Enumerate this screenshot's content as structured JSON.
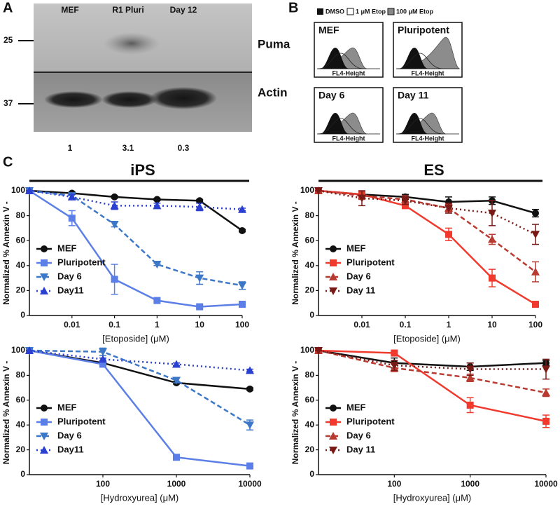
{
  "figure": {
    "panel_a": {
      "label": "A",
      "lanes": [
        "MEF",
        "R1 Pluri",
        "Day 12"
      ],
      "markers": [
        "25",
        "37"
      ],
      "bands": [
        "Puma",
        "Actin"
      ],
      "quantification": [
        "1",
        "3.1",
        "0.3"
      ]
    },
    "panel_b": {
      "label": "B",
      "legend": [
        "DMSO",
        "1 μM Etop",
        "100 μM Etop"
      ],
      "plots": [
        "MEF",
        "Pluripotent",
        "Day 6",
        "Day 11"
      ],
      "axis_label": "FL4-Height"
    },
    "panel_c": {
      "label": "C"
    }
  },
  "chart_data": [
    {
      "type": "line",
      "title": "iPS",
      "x_label": "[Etoposide] (μM)",
      "y_label": "Normalized % Annexin V -",
      "x": [
        0.001,
        0.01,
        0.1,
        1,
        10,
        100
      ],
      "xlim": [
        0.001,
        100
      ],
      "xticks": [
        0.01,
        0.1,
        1,
        10,
        100
      ],
      "x_scale": "log",
      "ylim": [
        0,
        100
      ],
      "yticks": [
        0,
        20,
        40,
        60,
        80,
        100
      ],
      "legend": "lower left",
      "series": [
        {
          "name": "MEF",
          "color": "#111111",
          "marker": "circle",
          "dash": "solid",
          "values": [
            100,
            98,
            95,
            93,
            92,
            68
          ],
          "errors": [
            0,
            1,
            1,
            1,
            1,
            1
          ]
        },
        {
          "name": "Pluripotent",
          "color": "#5b7fe6",
          "marker": "square",
          "dash": "solid",
          "values": [
            100,
            78,
            29,
            12,
            7,
            9
          ],
          "errors": [
            0,
            6,
            12,
            1,
            1,
            2
          ]
        },
        {
          "name": "Day 6",
          "color": "#3d78c8",
          "marker": "triangle-down",
          "dash": "dashed",
          "values": [
            100,
            96,
            73,
            41,
            30,
            24
          ],
          "errors": [
            0,
            2,
            2,
            1,
            5,
            3
          ]
        },
        {
          "name": "Day11",
          "color": "#2b3fd0",
          "marker": "triangle-up",
          "dash": "dotted",
          "values": [
            100,
            95,
            88,
            88,
            87,
            85
          ],
          "errors": [
            0,
            2,
            3,
            2,
            3,
            1
          ]
        }
      ]
    },
    {
      "type": "line",
      "title": "ES",
      "x_label": "[Etoposide] (μM)",
      "y_label": "Normalized % Annexin V -",
      "x": [
        0.001,
        0.01,
        0.1,
        1,
        10,
        100
      ],
      "xlim": [
        0.001,
        100
      ],
      "xticks": [
        0.01,
        0.1,
        1,
        10,
        100
      ],
      "x_scale": "log",
      "ylim": [
        0,
        100
      ],
      "yticks": [
        0,
        20,
        40,
        60,
        80,
        100
      ],
      "legend": "lower left",
      "series": [
        {
          "name": "MEF",
          "color": "#111111",
          "marker": "circle",
          "dash": "solid",
          "values": [
            100,
            97,
            95,
            91,
            92,
            82
          ],
          "errors": [
            0,
            2,
            2,
            4,
            3,
            3
          ]
        },
        {
          "name": "Pluripotent",
          "color": "#f03a2e",
          "marker": "square",
          "dash": "solid",
          "values": [
            100,
            97,
            88,
            65,
            30,
            9
          ],
          "errors": [
            0,
            2,
            2,
            5,
            7,
            2
          ]
        },
        {
          "name": "Day 6",
          "color": "#b83a30",
          "marker": "triangle-up",
          "dash": "dashed",
          "values": [
            100,
            96,
            93,
            86,
            61,
            35
          ],
          "errors": [
            0,
            3,
            3,
            3,
            4,
            8
          ]
        },
        {
          "name": "Day 11",
          "color": "#7a1a16",
          "marker": "triangle-down",
          "dash": "dotted",
          "values": [
            100,
            94,
            92,
            86,
            82,
            65
          ],
          "errors": [
            0,
            6,
            3,
            4,
            10,
            8
          ]
        }
      ]
    },
    {
      "type": "line",
      "x_label": "[Hydroxyurea] (μM)",
      "y_label": "Normalized % Annexin V -",
      "x": [
        10,
        100,
        1000,
        10000
      ],
      "xlim": [
        10,
        10000
      ],
      "xticks": [
        100,
        1000,
        10000
      ],
      "x_scale": "log",
      "ylim": [
        0,
        100
      ],
      "yticks": [
        0,
        20,
        40,
        60,
        80,
        100
      ],
      "legend": "lower left",
      "series": [
        {
          "name": "MEF",
          "color": "#111111",
          "marker": "circle",
          "dash": "solid",
          "values": [
            100,
            90,
            74,
            69
          ],
          "errors": [
            0,
            1,
            1,
            1
          ]
        },
        {
          "name": "Pluripotent",
          "color": "#5b7fe6",
          "marker": "square",
          "dash": "solid",
          "values": [
            100,
            89,
            14,
            7
          ],
          "errors": [
            0,
            1,
            1,
            1
          ]
        },
        {
          "name": "Day 6",
          "color": "#3d78c8",
          "marker": "triangle-down",
          "dash": "dashed",
          "values": [
            100,
            99,
            76,
            40
          ],
          "errors": [
            0,
            3,
            2,
            4
          ]
        },
        {
          "name": "Day11",
          "color": "#2b3fd0",
          "marker": "triangle-up",
          "dash": "dotted",
          "values": [
            100,
            93,
            89,
            84
          ],
          "errors": [
            0,
            1,
            1,
            1
          ]
        }
      ]
    },
    {
      "type": "line",
      "x_label": "[Hydroxyurea] (μM)",
      "y_label": "Normalized % Annexin V -",
      "x": [
        10,
        100,
        1000,
        10000
      ],
      "xlim": [
        10,
        10000
      ],
      "xticks": [
        100,
        1000,
        10000
      ],
      "x_scale": "log",
      "ylim": [
        0,
        100
      ],
      "yticks": [
        0,
        20,
        40,
        60,
        80,
        100
      ],
      "legend": "lower left",
      "series": [
        {
          "name": "MEF",
          "color": "#111111",
          "marker": "circle",
          "dash": "solid",
          "values": [
            100,
            90,
            87,
            90
          ],
          "errors": [
            0,
            4,
            3,
            2
          ]
        },
        {
          "name": "Pluripotent",
          "color": "#f03a2e",
          "marker": "square",
          "dash": "solid",
          "values": [
            100,
            98,
            56,
            43
          ],
          "errors": [
            0,
            1,
            6,
            5
          ]
        },
        {
          "name": "Day 6",
          "color": "#b83a30",
          "marker": "triangle-up",
          "dash": "dashed",
          "values": [
            100,
            86,
            78,
            66
          ],
          "errors": [
            0,
            3,
            3,
            3
          ]
        },
        {
          "name": "Day 11",
          "color": "#7a1a16",
          "marker": "triangle-down",
          "dash": "dotted",
          "values": [
            100,
            88,
            85,
            85
          ],
          "errors": [
            0,
            4,
            5,
            8
          ]
        }
      ]
    }
  ]
}
